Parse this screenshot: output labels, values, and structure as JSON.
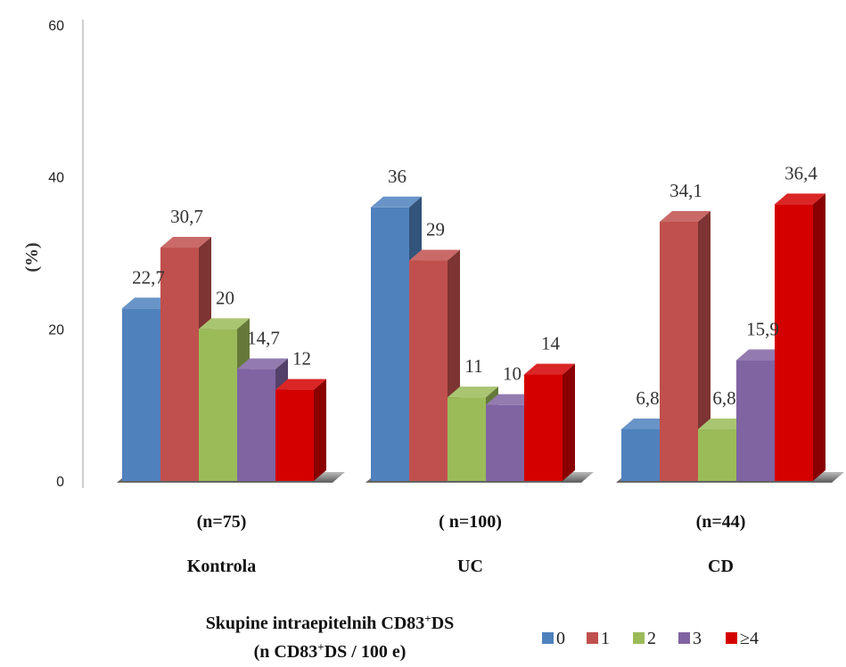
{
  "chart_data": {
    "type": "bar",
    "style": "3d-clustered-column",
    "ylabel": "(%)",
    "ylim": [
      0,
      60
    ],
    "yticks": [
      0,
      20,
      40,
      60
    ],
    "grid": false,
    "groups": [
      {
        "n_label": "(n=75)",
        "name": "Kontrola"
      },
      {
        "n_label": "( n=100)",
        "name": "UC"
      },
      {
        "n_label": "(n=44)",
        "name": "CD"
      }
    ],
    "series": [
      {
        "name": "0",
        "color": "#4F81BD",
        "values": [
          22.7,
          36,
          6.8
        ],
        "labels": [
          "22,7",
          "36",
          "6,8"
        ]
      },
      {
        "name": "1",
        "color": "#C0504D",
        "values": [
          30.7,
          29,
          34.1
        ],
        "labels": [
          "30,7",
          "29",
          "34,1"
        ]
      },
      {
        "name": "2",
        "color": "#9BBB59",
        "values": [
          20,
          11,
          6.8
        ],
        "labels": [
          "20",
          "11",
          "6,8"
        ]
      },
      {
        "name": "3",
        "color": "#8064A2",
        "values": [
          14.7,
          10,
          15.9
        ],
        "labels": [
          "14,7",
          "10",
          "15,9"
        ]
      },
      {
        "name": "≥4",
        "color": "#D40000",
        "values": [
          12,
          14,
          36.4
        ],
        "labels": [
          "12",
          "14",
          "36,4"
        ]
      }
    ],
    "xtitle_line1_main": "Skupine intraepitelnih CD83",
    "xtitle_line1_sup": "+",
    "xtitle_line1_end": "DS",
    "xtitle_line2_start": "(n CD83",
    "xtitle_line2_sup": "+",
    "xtitle_line2_end": "DS / 100 e)",
    "legend_position": "bottom-right"
  }
}
